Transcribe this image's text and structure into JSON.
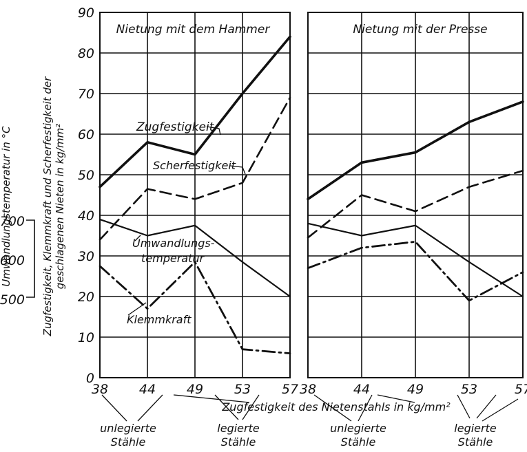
{
  "chart_data": [
    {
      "type": "line",
      "title": "Nietung mit dem Hammer",
      "x": [
        38,
        44,
        49,
        53,
        57
      ],
      "ylim": [
        0,
        90
      ],
      "series": [
        {
          "name": "Zugfestigkeit",
          "values": [
            47,
            58,
            55,
            70,
            84
          ],
          "style": "solid"
        },
        {
          "name": "Scherfestigkeit",
          "values": [
            34,
            46.5,
            44,
            48,
            69
          ],
          "style": "dashed"
        },
        {
          "name": "Umwandlungstemperatur",
          "values": [
            39,
            35,
            37.5,
            28.5,
            20
          ],
          "style": "solid"
        },
        {
          "name": "Klemmkraft",
          "values": [
            27.5,
            17,
            28.5,
            7,
            6
          ],
          "style": "dash-dot"
        }
      ]
    },
    {
      "type": "line",
      "title": "Nietung mit der Presse",
      "x": [
        38,
        44,
        49,
        53,
        57
      ],
      "ylim": [
        0,
        90
      ],
      "series": [
        {
          "name": "Zugfestigkeit",
          "values": [
            44,
            53,
            55.5,
            63,
            68
          ],
          "style": "solid"
        },
        {
          "name": "Scherfestigkeit",
          "values": [
            34.5,
            45,
            41,
            47,
            51
          ],
          "style": "dashed"
        },
        {
          "name": "Umwandlungstemperatur",
          "values": [
            38,
            35,
            37.5,
            28.5,
            20
          ],
          "style": "solid"
        },
        {
          "name": "Klemmkraft",
          "values": [
            27,
            32,
            33.5,
            19,
            26
          ],
          "style": "dash-dot"
        }
      ]
    }
  ],
  "labels": {
    "zugfestigkeit": "Zugfestigkeit",
    "scherfestigkeit": "Scherfestigkeit",
    "umwandlung_line1": "Umwandlungs-",
    "umwandlung_line2": "temperatur",
    "klemmkraft": "Klemmkraft"
  },
  "axes": {
    "y_ticks": [
      "0",
      "10",
      "20",
      "30",
      "40",
      "50",
      "60",
      "70",
      "80",
      "90"
    ],
    "x_ticks": [
      "38",
      "44",
      "49",
      "53",
      "57"
    ],
    "y_left_label": "Zugfestigkeit, Klemmkraft und Scherfestigkeit der geschlagenen Nieten in kg/mm²",
    "y_left_label_line1": "Zugfestigkeit, Klemmkraft und Scherfestigkeit der",
    "y_left_label_line2": "geschlagenen Nieten in kg/mm²",
    "temp_label": "Umwandlungstemperatur in °C",
    "temp_ticks": [
      "500",
      "600",
      "700"
    ],
    "x_label": "Zugfestigkeit des Nietenstahls in kg/mm²"
  },
  "groups": {
    "unlegiert_line1": "unlegierte",
    "unlegiert_line2": "Stähle",
    "legiert_line1": "legierte",
    "legiert_line2": "Stähle"
  }
}
